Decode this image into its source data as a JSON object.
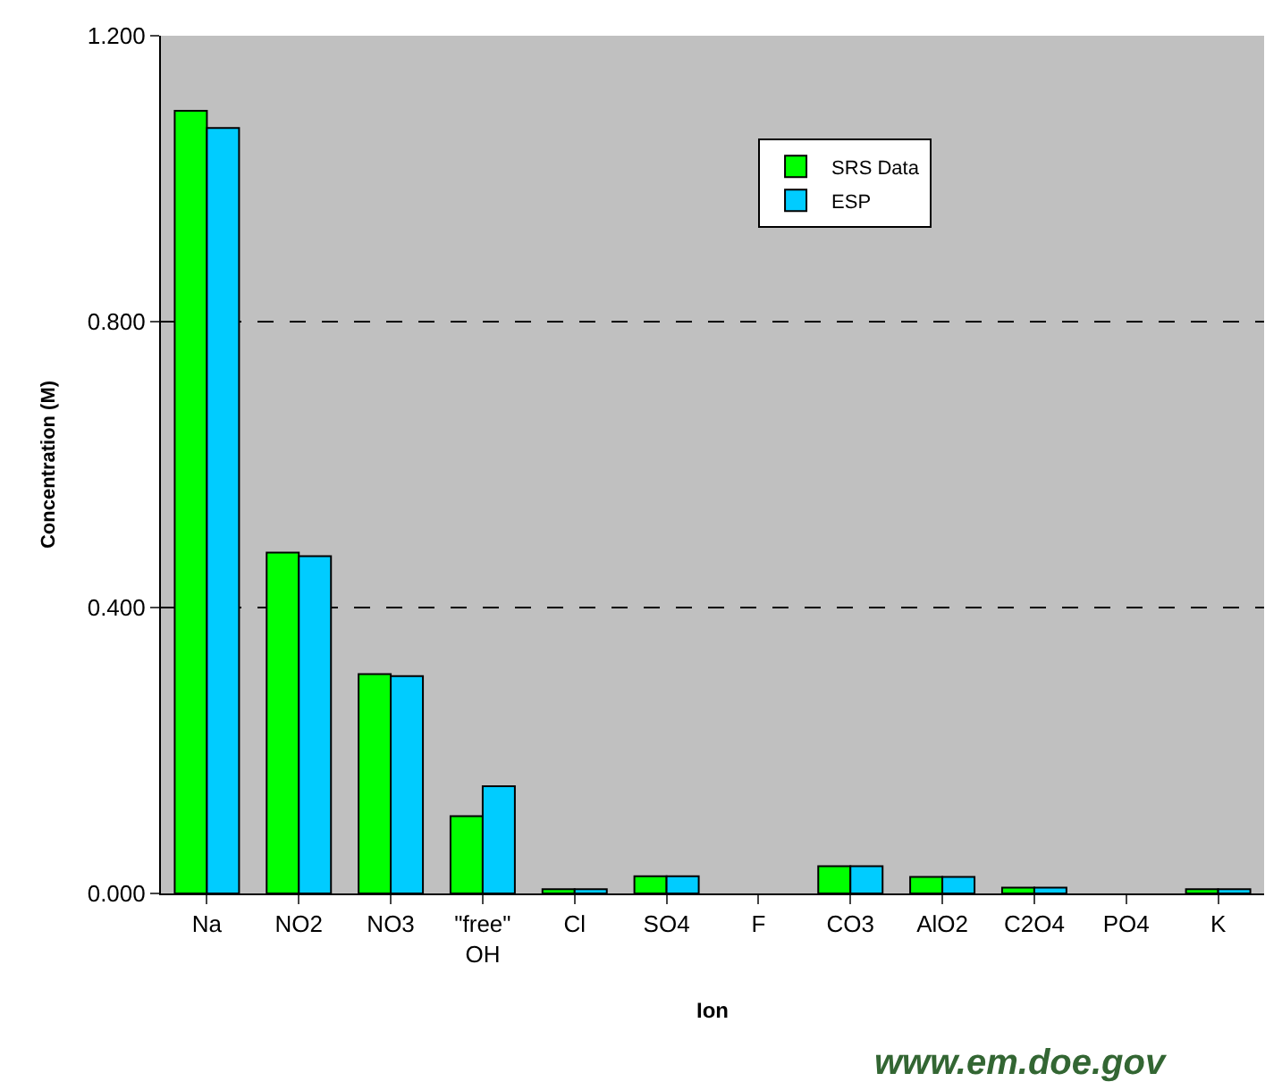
{
  "chart_data": {
    "type": "bar",
    "xlabel": "Ion",
    "ylabel": "Concentration (M)",
    "categories": [
      "Na",
      "NO2",
      "NO3",
      "\"free\" OH",
      "Cl",
      "SO4",
      "F",
      "CO3",
      "AlO2",
      "C2O4",
      "PO4",
      "K"
    ],
    "series": [
      {
        "name": "SRS Data",
        "color": "#00ff00",
        "values": [
          1.095,
          0.477,
          0.307,
          0.108,
          0.006,
          0.024,
          null,
          0.038,
          0.023,
          0.008,
          null,
          0.006
        ]
      },
      {
        "name": "ESP",
        "color": "#00ccff",
        "values": [
          1.071,
          0.472,
          0.304,
          0.15,
          0.006,
          0.024,
          null,
          0.038,
          0.023,
          0.008,
          null,
          0.006
        ]
      }
    ],
    "ylim": [
      0,
      1.2
    ],
    "yticks": [
      {
        "value": 0,
        "label": "0.000"
      },
      {
        "value": 0.4,
        "label": "0.400"
      },
      {
        "value": 0.8,
        "label": "0.800"
      },
      {
        "value": 1.2,
        "label": "1.200"
      }
    ],
    "grid": "y",
    "legend": "top",
    "annotations": [
      "www.em.doe.gov"
    ]
  }
}
